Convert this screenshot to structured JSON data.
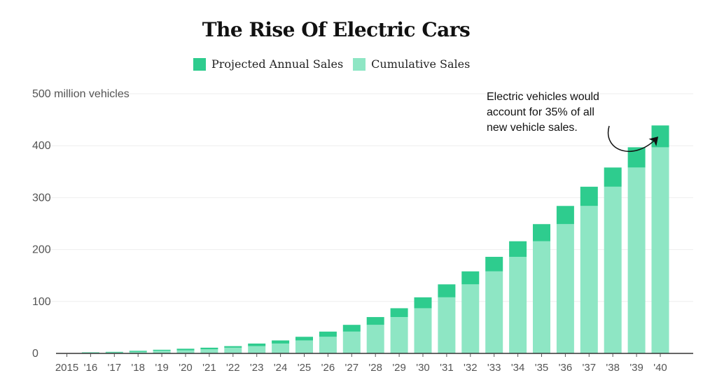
{
  "chart_data": {
    "type": "bar",
    "stacked": true,
    "title": "The Rise Of Electric Cars",
    "ylabel": "",
    "xlabel": "",
    "ylim": [
      0,
      500
    ],
    "y_ticks": [
      {
        "value": 0,
        "label": "0"
      },
      {
        "value": 100,
        "label": "100"
      },
      {
        "value": 200,
        "label": "200"
      },
      {
        "value": 300,
        "label": "300"
      },
      {
        "value": 400,
        "label": "400"
      },
      {
        "value": 500,
        "label": "500 million vehicles"
      }
    ],
    "categories": [
      "2015",
      "'16",
      "'17",
      "'18",
      "'19",
      "'20",
      "'21",
      "'22",
      "'23",
      "'24",
      "'25",
      "'26",
      "'27",
      "'28",
      "'29",
      "'30",
      "'31",
      "'32",
      "'33",
      "'34",
      "'35",
      "'36",
      "'37",
      "'38",
      "'39",
      "'40"
    ],
    "series": [
      {
        "name": "Cumulative Sales",
        "color": "#8ee6c4",
        "values": [
          0,
          1,
          2,
          3,
          5,
          6,
          8,
          11,
          14,
          19,
          25,
          32,
          42,
          55,
          70,
          87,
          108,
          133,
          158,
          186,
          216,
          249,
          284,
          321,
          358,
          397
        ]
      },
      {
        "name": "Projected Annual Sales",
        "color": "#2ecc8e",
        "values": [
          0.5,
          1,
          1,
          2,
          2,
          3,
          3,
          3,
          5,
          6,
          7,
          10,
          13,
          15,
          17,
          21,
          25,
          25,
          28,
          30,
          33,
          35,
          37,
          37,
          39,
          42
        ]
      }
    ],
    "grid": true,
    "legend_position": "top-center",
    "annotation": {
      "lines": [
        "Electric vehicles would",
        "account for 35% of all",
        "new vehicle sales."
      ],
      "target_category": "'40"
    }
  }
}
